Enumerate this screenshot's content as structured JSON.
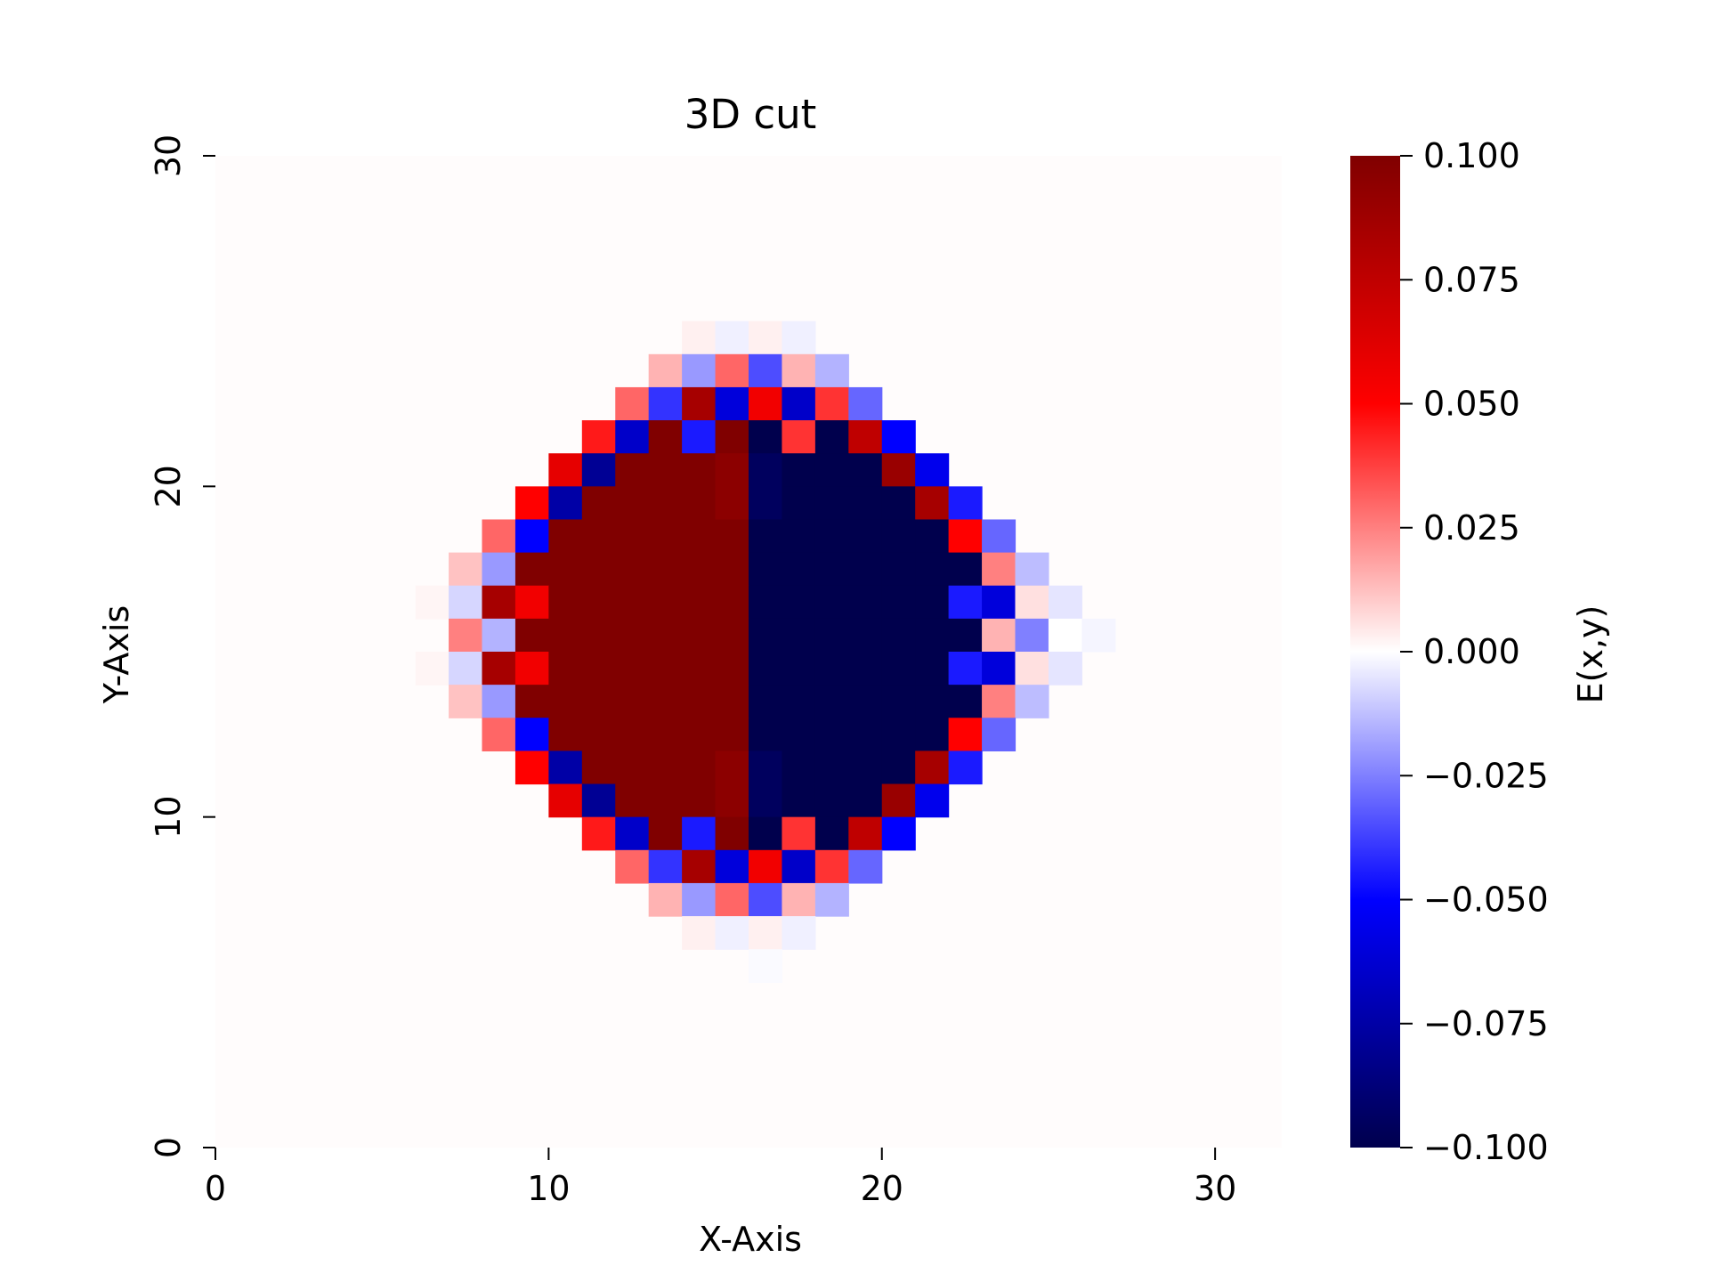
{
  "chart_data": {
    "type": "heatmap",
    "title": "3D cut",
    "xlabel": "X-Axis",
    "ylabel": "Y-Axis",
    "xlim": [
      0,
      32
    ],
    "ylim": [
      0,
      30
    ],
    "x_ticks": [
      0,
      10,
      20,
      30
    ],
    "y_ticks": [
      0,
      10,
      20,
      30
    ],
    "x_tick_labels": [
      "0",
      "10",
      "20",
      "30"
    ],
    "y_tick_labels": [
      "0",
      "10",
      "20",
      "30"
    ],
    "colormap": "seismic",
    "color_range": [
      -0.1,
      0.1
    ],
    "grid": false,
    "background_value": 0.0,
    "colorbar": {
      "label": "E(x,y)",
      "ticks": [
        0.1,
        0.075,
        0.05,
        0.025,
        0.0,
        -0.025,
        -0.05,
        -0.075,
        -0.1
      ],
      "tick_labels": [
        "0.100",
        "0.075",
        "0.050",
        "0.025",
        "0.000",
        "−0.025",
        "−0.050",
        "−0.075",
        "−0.100"
      ]
    },
    "cell_values_note": "",
    "rows": [
      {
        "y": 24,
        "x0": 14,
        "values": [
          0.003,
          -0.003,
          0.003,
          -0.003
        ]
      },
      {
        "y": 23,
        "x0": 13,
        "values": [
          0.015,
          -0.02,
          0.03,
          -0.035,
          0.015,
          -0.015
        ]
      },
      {
        "y": 22,
        "x0": 12,
        "values": [
          0.03,
          -0.04,
          0.085,
          -0.06,
          0.055,
          -0.065,
          0.04,
          -0.03
        ]
      },
      {
        "y": 21,
        "x0": 11,
        "values": [
          0.045,
          -0.065,
          0.1,
          -0.045,
          0.1,
          -0.1,
          0.04,
          -0.1,
          0.075,
          -0.05
        ]
      },
      {
        "y": 20,
        "x0": 10,
        "values": [
          0.06,
          -0.08,
          0.1,
          0.1,
          0.1,
          0.095,
          -0.095,
          -0.1,
          -0.1,
          -0.1,
          0.09,
          -0.055
        ]
      },
      {
        "y": 19,
        "x0": 9,
        "values": [
          0.05,
          -0.075,
          0.1,
          0.1,
          0.1,
          0.1,
          0.095,
          -0.095,
          -0.1,
          -0.1,
          -0.1,
          -0.1,
          0.085,
          -0.045
        ]
      },
      {
        "y": 18,
        "x0": 8,
        "values": [
          0.03,
          -0.05,
          0.1,
          0.1,
          0.1,
          0.1,
          0.1,
          0.1,
          -0.1,
          -0.1,
          -0.1,
          -0.1,
          -0.1,
          -0.1,
          0.05,
          -0.03
        ]
      },
      {
        "y": 17,
        "x0": 7,
        "values": [
          0.012,
          -0.02,
          0.1,
          0.1,
          0.1,
          0.1,
          0.1,
          0.1,
          0.1,
          -0.1,
          -0.1,
          -0.1,
          -0.1,
          -0.1,
          -0.1,
          -0.1,
          0.025,
          -0.013
        ]
      },
      {
        "y": 16,
        "x0": 6,
        "values": [
          0.002,
          -0.008,
          0.085,
          0.055,
          0.1,
          0.1,
          0.1,
          0.1,
          0.1,
          0.1,
          -0.1,
          -0.1,
          -0.1,
          -0.1,
          -0.1,
          -0.1,
          -0.045,
          -0.06,
          0.006,
          -0.005
        ]
      },
      {
        "y": 15,
        "x0": 7,
        "values": [
          0.025,
          -0.015,
          0.1,
          0.1,
          0.1,
          0.1,
          0.1,
          0.1,
          0.1,
          -0.1,
          -0.1,
          -0.1,
          -0.1,
          -0.1,
          -0.1,
          -0.1,
          0.015,
          -0.025,
          0.0,
          -0.002
        ]
      },
      {
        "y": 14,
        "x0": 6,
        "values": [
          0.002,
          -0.008,
          0.085,
          0.055,
          0.1,
          0.1,
          0.1,
          0.1,
          0.1,
          0.1,
          -0.1,
          -0.1,
          -0.1,
          -0.1,
          -0.1,
          -0.1,
          -0.045,
          -0.06,
          0.006,
          -0.005
        ]
      },
      {
        "y": 13,
        "x0": 7,
        "values": [
          0.012,
          -0.02,
          0.1,
          0.1,
          0.1,
          0.1,
          0.1,
          0.1,
          0.1,
          -0.1,
          -0.1,
          -0.1,
          -0.1,
          -0.1,
          -0.1,
          -0.1,
          0.025,
          -0.013
        ]
      },
      {
        "y": 12,
        "x0": 8,
        "values": [
          0.03,
          -0.05,
          0.1,
          0.1,
          0.1,
          0.1,
          0.1,
          0.1,
          -0.1,
          -0.1,
          -0.1,
          -0.1,
          -0.1,
          -0.1,
          0.05,
          -0.03
        ]
      },
      {
        "y": 11,
        "x0": 9,
        "values": [
          0.05,
          -0.075,
          0.1,
          0.1,
          0.1,
          0.1,
          0.095,
          -0.095,
          -0.1,
          -0.1,
          -0.1,
          -0.1,
          0.085,
          -0.045
        ]
      },
      {
        "y": 10,
        "x0": 10,
        "values": [
          0.06,
          -0.08,
          0.1,
          0.1,
          0.1,
          0.095,
          -0.095,
          -0.1,
          -0.1,
          -0.1,
          0.09,
          -0.055
        ]
      },
      {
        "y": 9,
        "x0": 11,
        "values": [
          0.045,
          -0.065,
          0.1,
          -0.045,
          0.1,
          -0.1,
          0.04,
          -0.1,
          0.075,
          -0.05
        ]
      },
      {
        "y": 8,
        "x0": 12,
        "values": [
          0.03,
          -0.04,
          0.085,
          -0.06,
          0.055,
          -0.065,
          0.04,
          -0.03
        ]
      },
      {
        "y": 7,
        "x0": 13,
        "values": [
          0.015,
          -0.02,
          0.03,
          -0.035,
          0.015,
          -0.015
        ]
      },
      {
        "y": 6,
        "x0": 14,
        "values": [
          0.003,
          -0.003,
          0.003,
          -0.003
        ]
      },
      {
        "y": 5,
        "x0": 16,
        "values": [
          -0.001
        ]
      }
    ]
  }
}
